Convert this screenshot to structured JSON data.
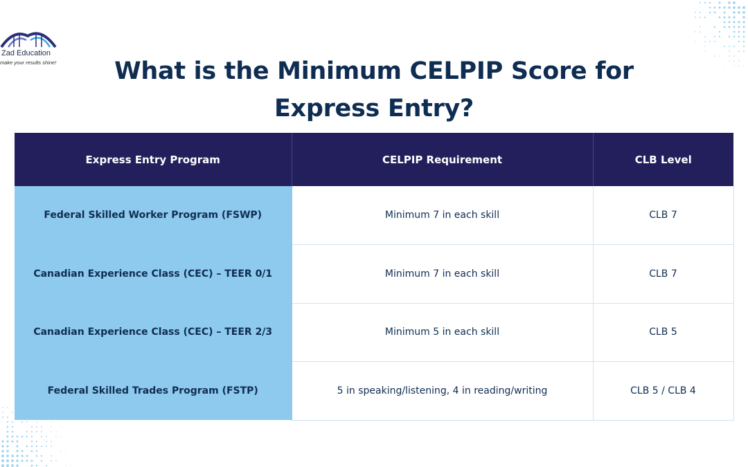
{
  "logo": {
    "name": "Zad Education",
    "tagline": "make your results shine!"
  },
  "title": "What is the Minimum CELPIP Score for Express Entry?",
  "table": {
    "headers": [
      "Express Entry Program",
      "CELPIP Requirement",
      "CLB Level"
    ],
    "rows": [
      {
        "program": "Federal Skilled Worker Program (FSWP)",
        "requirement": "Minimum 7 in each skill",
        "clb": "CLB 7"
      },
      {
        "program": "Canadian Experience Class (CEC) – TEER 0/1",
        "requirement": "Minimum 7 in each skill",
        "clb": "CLB 7"
      },
      {
        "program": "Canadian Experience Class (CEC) – TEER 2/3",
        "requirement": "Minimum 5 in each skill",
        "clb": "CLB 5"
      },
      {
        "program": "Federal Skilled Trades Program (FSTP)",
        "requirement": "5 in speaking/listening, 4 in reading/writing",
        "clb": "CLB 5 / CLB 4"
      }
    ]
  },
  "colors": {
    "header_bg": "#231f5c",
    "program_bg": "#8ec9ee",
    "text": "#0f2d52",
    "accent_dots": "#7fc4ec"
  }
}
